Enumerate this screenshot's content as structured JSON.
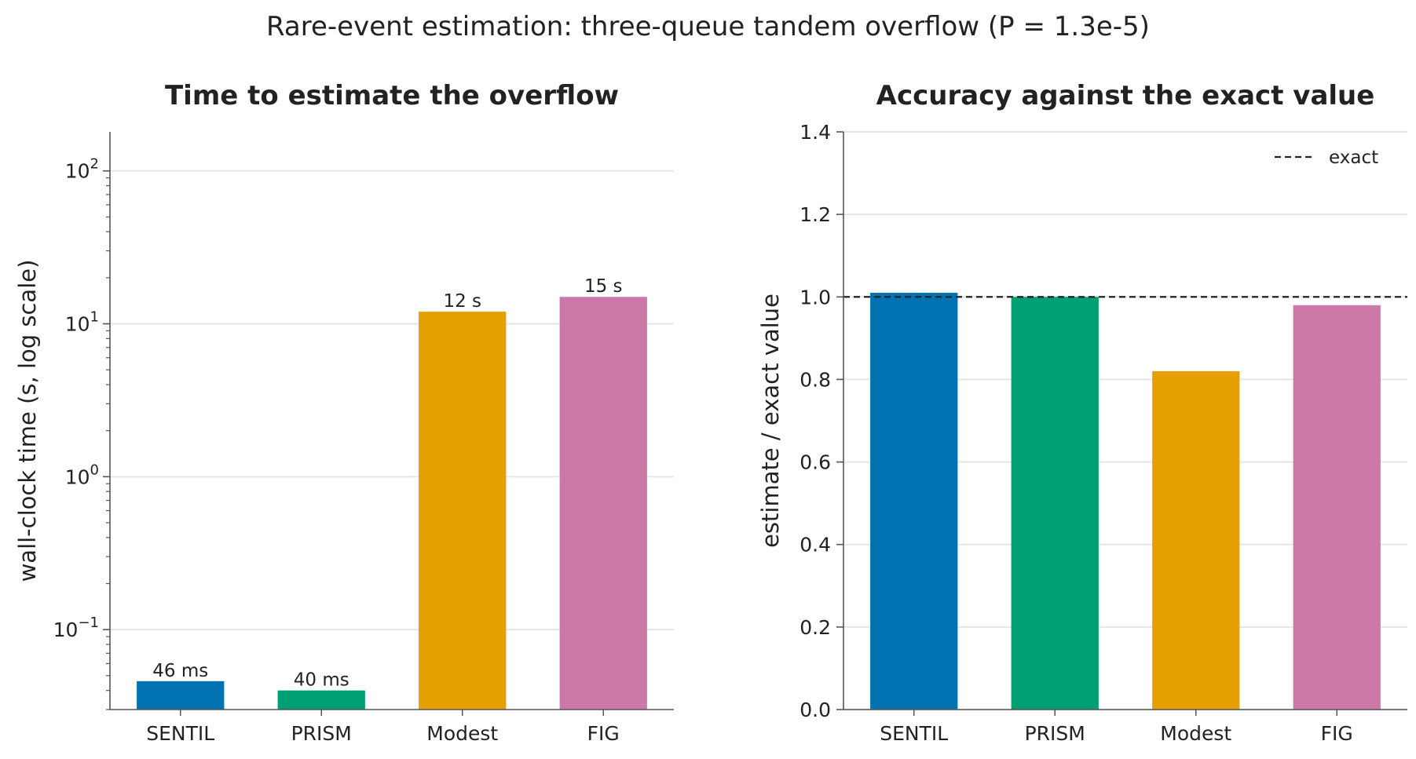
{
  "suptitle": "Rare-event estimation: three-queue tandem overflow (P = 1.3e-5)",
  "chart_data": [
    {
      "type": "bar",
      "title": "Time to estimate the overflow",
      "xlabel": "",
      "ylabel": "wall-clock time (s, log scale)",
      "yscale": "log",
      "ylim": [
        0.03,
        180
      ],
      "categories": [
        "SENTIL",
        "PRISM",
        "Modest",
        "FIG"
      ],
      "values": [
        0.046,
        0.04,
        12,
        15
      ],
      "data_labels": [
        "46 ms",
        "40 ms",
        "12 s",
        "15 s"
      ],
      "colors": [
        "#0072B2",
        "#009E73",
        "#E69F00",
        "#CC79A7"
      ],
      "major_ticks": [
        0.1,
        1,
        10,
        100
      ],
      "tick_labels": [
        {
          "base": "10",
          "exp": "−1"
        },
        {
          "base": "10",
          "exp": "0"
        },
        {
          "base": "10",
          "exp": "1"
        },
        {
          "base": "10",
          "exp": "2"
        }
      ],
      "grid": "y-major"
    },
    {
      "type": "bar",
      "title": "Accuracy against the exact value",
      "xlabel": "",
      "ylabel": "estimate / exact value",
      "ylim": [
        0,
        1.4
      ],
      "categories": [
        "SENTIL",
        "PRISM",
        "Modest",
        "FIG"
      ],
      "values": [
        1.01,
        1.0,
        0.82,
        0.98
      ],
      "colors": [
        "#0072B2",
        "#009E73",
        "#E69F00",
        "#CC79A7"
      ],
      "yticks": [
        0.0,
        0.2,
        0.4,
        0.6,
        0.8,
        1.0,
        1.2,
        1.4
      ],
      "ytick_labels": [
        "0.0",
        "0.2",
        "0.4",
        "0.6",
        "0.8",
        "1.0",
        "1.2",
        "1.4"
      ],
      "reference_line": {
        "value": 1.0,
        "label": "exact",
        "style": "dashed",
        "color": "#222222"
      },
      "legend": "top-right",
      "grid": "y"
    }
  ]
}
